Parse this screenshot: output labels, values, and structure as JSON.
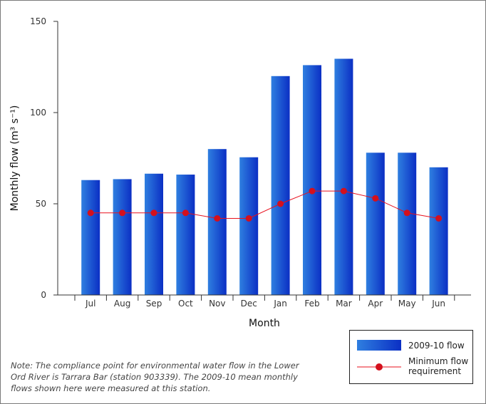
{
  "chart_data": {
    "type": "bar",
    "categories": [
      "Jul",
      "Aug",
      "Sep",
      "Oct",
      "Nov",
      "Dec",
      "Jan",
      "Feb",
      "Mar",
      "Apr",
      "May",
      "Jun"
    ],
    "series": [
      {
        "name": "2009-10 flow",
        "type": "bar",
        "values": [
          63,
          63.5,
          66.5,
          66,
          80,
          75.5,
          120,
          126,
          129.5,
          78,
          78,
          70
        ]
      },
      {
        "name": "Minimum flow requirement",
        "type": "line",
        "values": [
          45,
          45,
          45,
          45,
          42,
          42,
          50,
          57,
          57,
          53,
          45,
          42
        ]
      }
    ],
    "xlabel": "Month",
    "ylabel": "Monthly flow (m³ s⁻¹)",
    "ylim": [
      0,
      150
    ],
    "yticks": [
      0,
      50,
      100,
      150
    ],
    "grid": false,
    "legend": {
      "placement": "bottom-right",
      "items": [
        "2009-10 flow",
        "Minimum flow requirement"
      ]
    },
    "colors": {
      "bar_light": "#2f7fe0",
      "bar_dark": "#0b2fc4",
      "line": "#e8101e",
      "marker": "#d4101c"
    }
  },
  "note": "Note: The compliance point for environmental water flow in the Lower Ord River is Tarrara Bar (station 903339). The 2009-10 mean monthly flows shown here were measured at this station.",
  "legend_labels": {
    "flow": "2009-10 flow",
    "min_flow": "Minimum flow requirement"
  }
}
